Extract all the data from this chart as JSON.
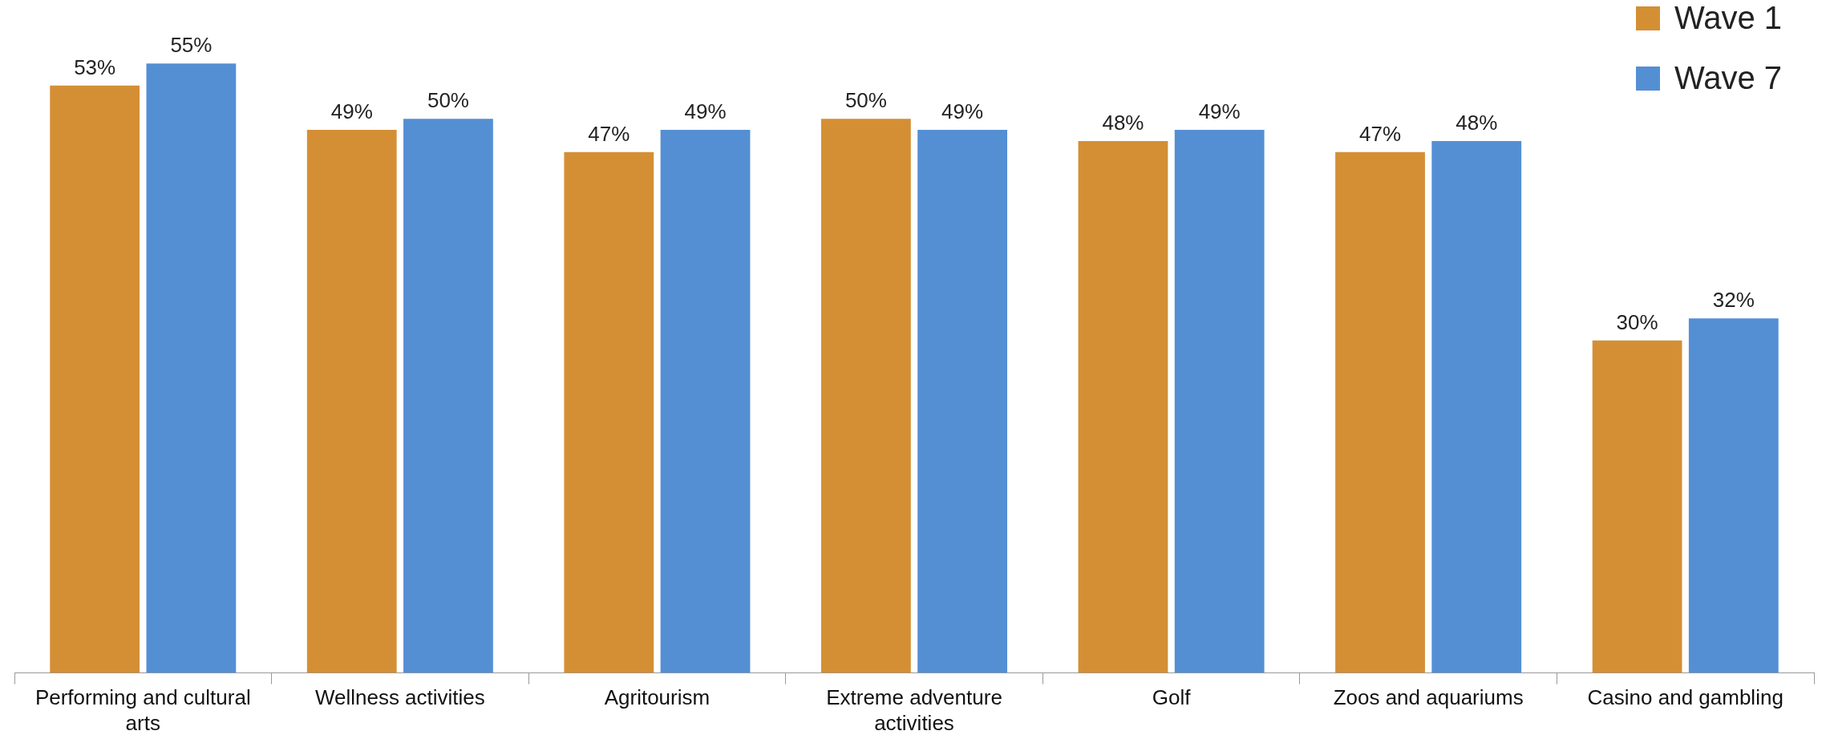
{
  "chart_data": {
    "type": "bar",
    "categories": [
      "Performing and cultural arts",
      "Wellness activities",
      "Agritourism",
      "Extreme adventure activities",
      "Golf",
      "Zoos and aquariums",
      "Casino and gambling"
    ],
    "relative": false,
    "series": [
      {
        "name": "Wave 1",
        "color": "#d48f35",
        "values": [
          53,
          49,
          47,
          50,
          48,
          47,
          30
        ],
        "value_labels": [
          "53%",
          "49%",
          "47%",
          "50%",
          "48%",
          "47%",
          "30%"
        ]
      },
      {
        "name": "Wave 7",
        "color": "#548fd4",
        "values": [
          55,
          50,
          49,
          49,
          49,
          48,
          32
        ],
        "value_labels": [
          "55%",
          "50%",
          "49%",
          "49%",
          "49%",
          "48%",
          "32%"
        ]
      }
    ],
    "legend": "top right",
    "grid": false
  }
}
